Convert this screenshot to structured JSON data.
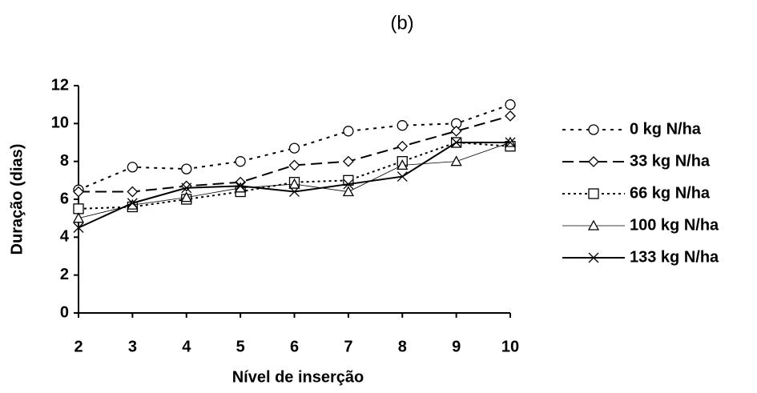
{
  "chart_data": {
    "type": "line",
    "title": "(b)",
    "x_label": "Nível de inserção",
    "y_label": "Duração (dias)",
    "x": [
      2,
      3,
      4,
      5,
      6,
      7,
      8,
      9,
      10
    ],
    "xlim": [
      2,
      10
    ],
    "xticks": [
      2,
      3,
      4,
      5,
      6,
      7,
      8,
      9,
      10
    ],
    "ylim": [
      0,
      12
    ],
    "yticks": [
      0,
      2,
      4,
      6,
      8,
      10,
      12
    ],
    "legend": "right",
    "series": [
      {
        "name": "0 kg N/ha",
        "color": "#000000",
        "dash": "4 6",
        "width": 2,
        "marker": "circle",
        "values": [
          6.5,
          7.7,
          7.6,
          8.0,
          8.7,
          9.6,
          9.9,
          10.0,
          11.0
        ]
      },
      {
        "name": "33 kg N/ha",
        "color": "#000000",
        "dash": "14 7",
        "width": 2,
        "marker": "diamond",
        "values": [
          6.4,
          6.4,
          6.7,
          6.9,
          7.8,
          8.0,
          8.8,
          9.6,
          10.4
        ]
      },
      {
        "name": "66 kg N/ha",
        "color": "#000000",
        "dash": "3 4",
        "width": 2,
        "marker": "square",
        "values": [
          5.5,
          5.6,
          6.0,
          6.4,
          6.9,
          7.0,
          8.0,
          9.0,
          8.8
        ]
      },
      {
        "name": "100 kg N/ha",
        "color": "#000000",
        "dash": "",
        "width": 0.8,
        "marker": "triangle",
        "values": [
          5.0,
          5.7,
          6.1,
          6.6,
          6.8,
          6.4,
          7.8,
          8.0,
          9.0
        ]
      },
      {
        "name": "133 kg N/ha",
        "color": "#000000",
        "dash": "",
        "width": 2,
        "marker": "x",
        "values": [
          4.5,
          5.8,
          6.6,
          6.7,
          6.4,
          6.8,
          7.2,
          9.0,
          9.0
        ]
      }
    ]
  }
}
